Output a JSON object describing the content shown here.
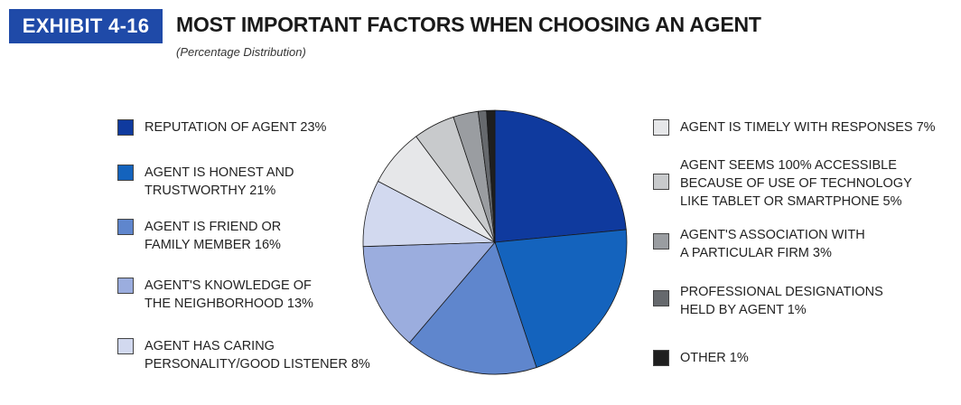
{
  "header": {
    "exhibit": "EXHIBIT 4-16",
    "title": "MOST IMPORTANT FACTORS WHEN CHOOSING AN AGENT",
    "subtitle": "(Percentage Distribution)"
  },
  "legend": [
    "REPUTATION OF AGENT  23%",
    "AGENT IS HONEST AND\nTRUSTWORTHY  21%",
    "AGENT IS FRIEND OR\nFAMILY MEMBER  16%",
    "AGENT'S KNOWLEDGE OF\nTHE NEIGHBORHOOD  13%",
    "AGENT HAS CARING\nPERSONALITY/GOOD LISTENER  8%",
    "AGENT IS TIMELY WITH RESPONSES  7%",
    "AGENT SEEMS 100% ACCESSIBLE\nBECAUSE OF USE OF TECHNOLOGY\nLIKE TABLET OR SMARTPHONE  5%",
    "AGENT'S ASSOCIATION WITH\nA PARTICULAR FIRM  3%",
    "PROFESSIONAL DESIGNATIONS\nHELD BY AGENT  1%",
    "OTHER  1%"
  ],
  "chart_data": {
    "type": "pie",
    "start": "12 o'clock",
    "direction": "clockwise",
    "categories": [
      "Reputation of agent",
      "Agent is honest and trustworthy",
      "Agent is friend or family member",
      "Agent's knowledge of the neighborhood",
      "Agent has caring personality/good listener",
      "Agent is timely with responses",
      "Agent seems 100% accessible because of use of technology like tablet or smartphone",
      "Agent's association with a particular firm",
      "Professional designations held by agent",
      "Other"
    ],
    "values": [
      23,
      21,
      16,
      13,
      8,
      7,
      5,
      3,
      1,
      1
    ],
    "unit": "%",
    "colors": [
      "#0f3a9e",
      "#1463bd",
      "#5f86cd",
      "#9badde",
      "#d2d9ef",
      "#e6e7e9",
      "#c8cacc",
      "#9a9da1",
      "#66696d",
      "#1f1f1f"
    ]
  }
}
